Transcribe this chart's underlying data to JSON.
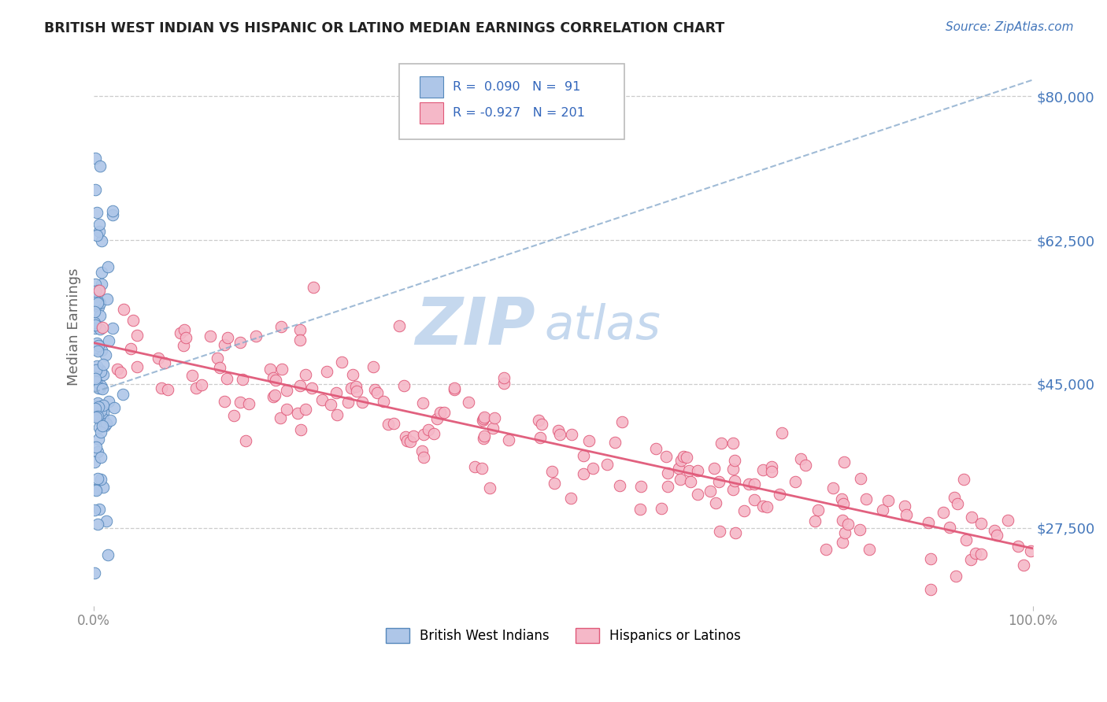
{
  "title": "BRITISH WEST INDIAN VS HISPANIC OR LATINO MEDIAN EARNINGS CORRELATION CHART",
  "source_text": "Source: ZipAtlas.com",
  "ylabel": "Median Earnings",
  "xlim": [
    0.0,
    1.0
  ],
  "ylim": [
    18000,
    86000
  ],
  "xtick_labels": [
    "0.0%",
    "100.0%"
  ],
  "ytick_values": [
    27500,
    45000,
    62500,
    80000
  ],
  "ytick_labels": [
    "$27,500",
    "$45,000",
    "$62,500",
    "$80,000"
  ],
  "legend_labels": [
    "British West Indians",
    "Hispanics or Latinos"
  ],
  "R_blue": 0.09,
  "N_blue": 91,
  "R_pink": -0.927,
  "N_pink": 201,
  "blue_color": "#aec6e8",
  "blue_edge": "#5588bb",
  "pink_color": "#f5b8c8",
  "pink_edge": "#e05878",
  "blue_line_color": "#88aacc",
  "pink_line_color": "#e05878",
  "watermark_zip": "ZIP",
  "watermark_atlas": "atlas",
  "watermark_color_zip": "#c5d8ee",
  "watermark_color_atlas": "#c5d8ee",
  "background_color": "#ffffff",
  "grid_color": "#cccccc",
  "legend_box_color": "#ffffff",
  "legend_box_edge": "#bbbbbb",
  "title_color": "#222222",
  "source_color": "#4477bb",
  "axis_label_color": "#666666",
  "tick_color": "#888888"
}
